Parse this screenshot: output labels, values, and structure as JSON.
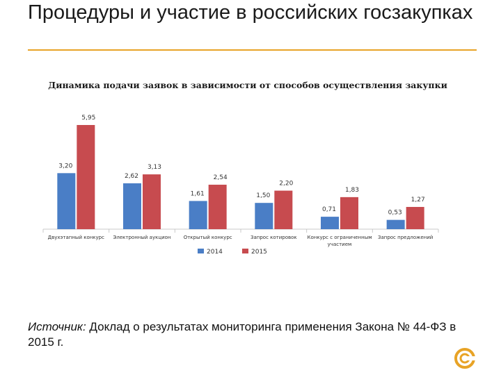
{
  "slide": {
    "title": "Процедуры и участие в российских госзакупках",
    "source_label": "Источник:",
    "source_text": " Доклад о результатах мониторинга применения Закона № 44-ФЗ в 2015 г."
  },
  "colors": {
    "accent": "#e8a326",
    "series_2014": "#4a7ec6",
    "series_2015": "#c74b4f"
  },
  "chart_data": {
    "type": "bar",
    "title": "Динамика подачи заявок в зависимости от способов осуществления закупки",
    "categories": [
      "Двухэтапный конкурс",
      "Электронный аукцион",
      "Открытый конкурс",
      "Запрос котировок",
      "Конкурс с ограниченным участием",
      "Запрос предложений"
    ],
    "series": [
      {
        "name": "2014",
        "values": [
          3.2,
          2.62,
          1.61,
          1.5,
          0.71,
          0.53
        ],
        "labels": [
          "3,20",
          "2,62",
          "1,61",
          "1,50",
          "0,71",
          "0,53"
        ]
      },
      {
        "name": "2015",
        "values": [
          5.95,
          3.13,
          2.54,
          2.2,
          1.83,
          1.27
        ],
        "labels": [
          "5,95",
          "3,13",
          "2,54",
          "2,20",
          "1,83",
          "1,27"
        ]
      }
    ],
    "ylim": [
      0,
      6.5
    ],
    "xlabel": "",
    "ylabel": "",
    "legend": "bottom-center",
    "grid": false
  }
}
